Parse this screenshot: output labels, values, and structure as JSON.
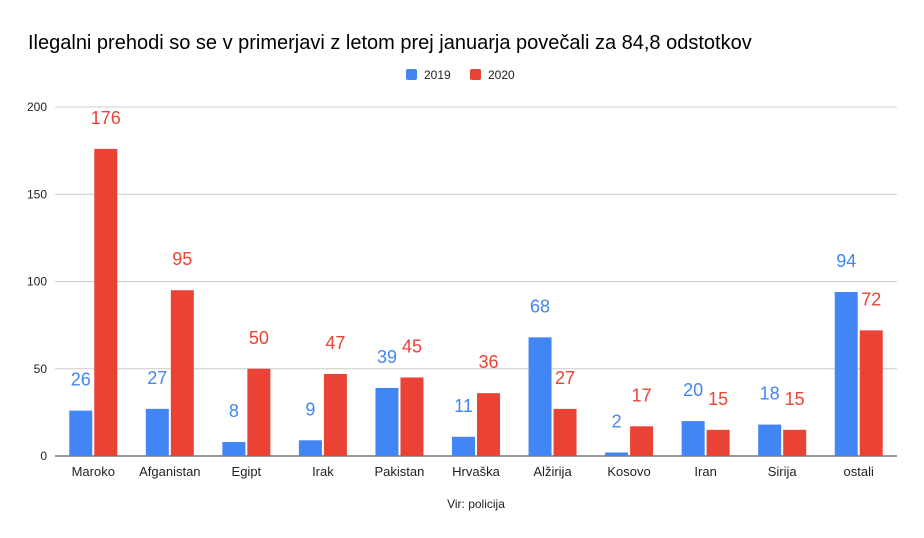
{
  "chart_data": {
    "type": "bar",
    "title": "Ilegalni prehodi so se v primerjavi z letom prej januarja povečali za 84,8 odstotkov",
    "categories": [
      "Maroko",
      "Afganistan",
      "Egipt",
      "Irak",
      "Pakistan",
      "Hrvaška",
      "Alžirija",
      "Kosovo",
      "Iran",
      "Sirija",
      "ostali"
    ],
    "series": [
      {
        "name": "2019",
        "color": "#4285f4",
        "values": [
          26,
          27,
          8,
          9,
          39,
          11,
          68,
          2,
          20,
          18,
          94
        ]
      },
      {
        "name": "2020",
        "color": "#ea4335",
        "values": [
          176,
          95,
          50,
          47,
          45,
          36,
          27,
          17,
          15,
          15,
          72
        ]
      }
    ],
    "ylim": [
      0,
      200
    ],
    "yticks": [
      0,
      50,
      100,
      150,
      200
    ],
    "grid": true,
    "legend": "top-center",
    "xlabel": "Vir: policija",
    "ylabel": ""
  }
}
